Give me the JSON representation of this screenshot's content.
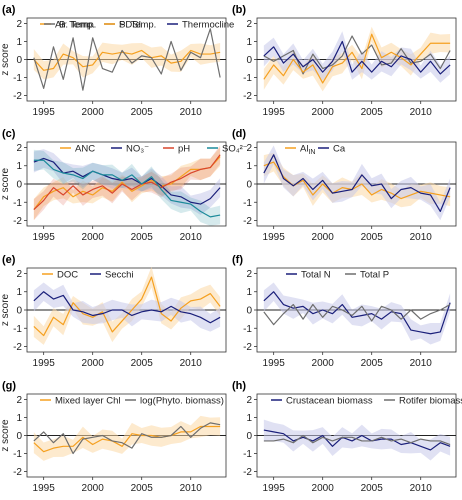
{
  "colors": {
    "orange": "#f5a020",
    "orange_band": "#fbd8a6",
    "navy": "#1a1f7a",
    "navy_band": "#c6c9ea",
    "gray": "#6e6e6e",
    "red": "#d9452c",
    "green": "#2e8b57",
    "teal": "#1b8a9a",
    "zero_line": "#222222",
    "axis": "#333333"
  },
  "chart_data": [
    {
      "type": "line",
      "panel_label": "(a)",
      "x": [
        1994,
        1995,
        1996,
        1997,
        1998,
        1999,
        2000,
        2001,
        2002,
        2003,
        2004,
        2005,
        2006,
        2007,
        2008,
        2009,
        2010,
        2011,
        2012,
        2013
      ],
      "xlim": [
        1993.3,
        2013.6
      ],
      "xticks": [
        1995,
        2000,
        2005,
        2010
      ],
      "ylim": [
        -2.3,
        2.3
      ],
      "yticks": [
        -2,
        -1,
        0,
        1,
        2
      ],
      "ylabel": "z score",
      "series": [
        {
          "name": "Air Temp.",
          "color": "orange",
          "band": true,
          "values": [
            0.0,
            -0.6,
            -0.5,
            0.3,
            0.1,
            -0.4,
            -0.3,
            0.4,
            0.3,
            0.4,
            0.3,
            0.5,
            0.1,
            0.2,
            -0.2,
            -0.1,
            0.5,
            0.3,
            0.3,
            0.4
          ]
        },
        {
          "name": "PDSI",
          "color": "gray",
          "band": false,
          "values": [
            0.1,
            -1.6,
            0.7,
            -1.1,
            1.2,
            -1.7,
            1.2,
            -0.5,
            -0.7,
            0.5,
            -0.2,
            0.2,
            0.1,
            -0.8,
            1.0,
            -0.6,
            0.4,
            0.1,
            1.7,
            -1.0
          ]
        }
      ]
    },
    {
      "type": "line",
      "panel_label": "(b)",
      "x": [
        1994,
        1995,
        1996,
        1997,
        1998,
        1999,
        2000,
        2001,
        2002,
        2003,
        2004,
        2005,
        2006,
        2007,
        2008,
        2009,
        2010,
        2011,
        2012,
        2013
      ],
      "xlim": [
        1993.3,
        2013.6
      ],
      "xticks": [
        1995,
        2000,
        2005,
        2010
      ],
      "ylim": [
        -2.3,
        2.3
      ],
      "yticks": [
        -2,
        -1,
        0,
        1,
        2
      ],
      "ylabel": "",
      "series": [
        {
          "name": "B. Temp.",
          "color": "gray",
          "band": false,
          "values": [
            0.2,
            -0.1,
            0.2,
            0.5,
            -0.8,
            0.3,
            -0.5,
            -0.3,
            0.2,
            1.3,
            0.3,
            0.8,
            -0.3,
            -0.2,
            0.6,
            -0.2,
            -0.1,
            0.3,
            -0.5,
            0.5
          ]
        },
        {
          "name": "S. Temp.",
          "color": "orange",
          "band": true,
          "values": [
            -1.1,
            -0.3,
            -0.9,
            0.0,
            -0.7,
            -0.3,
            -1.3,
            -0.4,
            -0.2,
            0.4,
            -0.5,
            1.4,
            0.1,
            0.4,
            0.1,
            -0.3,
            0.3,
            0.9,
            0.9,
            0.9
          ]
        },
        {
          "name": "Thermocline",
          "color": "navy",
          "band": true,
          "values": [
            0.2,
            0.7,
            -0.2,
            0.3,
            -0.4,
            0.0,
            -0.7,
            -0.1,
            1.0,
            -0.7,
            -0.1,
            -0.7,
            -0.1,
            -0.4,
            0.2,
            0.0,
            -0.7,
            -0.1,
            -0.8,
            -0.3
          ]
        }
      ]
    },
    {
      "type": "line",
      "panel_label": "(c)",
      "x": [
        1994,
        1995,
        1996,
        1997,
        1998,
        1999,
        2000,
        2001,
        2002,
        2003,
        2004,
        2005,
        2006,
        2007,
        2008,
        2009,
        2010,
        2011,
        2012,
        2013
      ],
      "xlim": [
        1993.3,
        2013.6
      ],
      "xticks": [
        1995,
        2000,
        2005,
        2010
      ],
      "ylim": [
        -2.3,
        2.3
      ],
      "yticks": [
        -2,
        -1,
        0,
        1,
        2
      ],
      "ylabel": "z score",
      "series": [
        {
          "name": "ANC",
          "color": "orange",
          "band": true,
          "values": [
            -1.4,
            -0.7,
            -0.4,
            -0.2,
            -0.7,
            -0.4,
            -0.6,
            -0.2,
            -0.4,
            0.1,
            -0.4,
            -0.1,
            0.2,
            -0.1,
            0.0,
            0.4,
            0.8,
            0.8,
            0.9,
            1.5
          ]
        },
        {
          "name": "NO₃⁻",
          "color": "navy",
          "band": true,
          "values": [
            1.2,
            1.4,
            1.2,
            0.6,
            0.7,
            0.4,
            0.7,
            0.5,
            0.3,
            0.2,
            0.3,
            0.0,
            0.3,
            -0.1,
            -0.6,
            -0.7,
            -1.0,
            -1.1,
            -0.8,
            -0.2
          ]
        },
        {
          "name": "pH",
          "color": "red",
          "band": true,
          "values": [
            -1.4,
            -0.9,
            -0.2,
            -0.6,
            -0.1,
            -0.6,
            -0.3,
            -0.1,
            -0.5,
            0.0,
            -0.3,
            0.0,
            0.1,
            -0.2,
            0.1,
            0.3,
            0.6,
            0.8,
            0.9,
            1.6
          ]
        },
        {
          "name": "SO₄²⁻",
          "color": "teal",
          "band": true,
          "values": [
            1.3,
            1.3,
            0.8,
            0.6,
            0.5,
            0.3,
            0.7,
            0.5,
            0.5,
            0.2,
            0.5,
            0.0,
            0.4,
            -0.3,
            -0.9,
            -1.0,
            -1.1,
            -1.5,
            -1.8,
            -1.7
          ]
        }
      ]
    },
    {
      "type": "line",
      "panel_label": "(d)",
      "x": [
        1994,
        1995,
        1996,
        1997,
        1998,
        1999,
        2000,
        2001,
        2002,
        2003,
        2004,
        2005,
        2006,
        2007,
        2008,
        2009,
        2010,
        2011,
        2012,
        2013
      ],
      "xlim": [
        1993.3,
        2013.6
      ],
      "xticks": [
        1995,
        2000,
        2005,
        2010
      ],
      "ylim": [
        -2.3,
        2.3
      ],
      "yticks": [
        -2,
        -1,
        0,
        1,
        2
      ],
      "ylabel": "",
      "series": [
        {
          "name": "Al_IN",
          "color": "orange",
          "band": true,
          "values": [
            1.0,
            1.2,
            0.4,
            -0.1,
            0.2,
            -0.6,
            0.0,
            -0.5,
            -0.2,
            -0.3,
            0.0,
            -0.6,
            -0.3,
            -0.5,
            -0.8,
            -0.6,
            -0.4,
            -0.5,
            -0.6,
            -0.7
          ]
        },
        {
          "name": "Ca",
          "color": "navy",
          "band": true,
          "values": [
            0.6,
            1.6,
            0.3,
            -0.1,
            0.3,
            -0.3,
            0.2,
            -0.5,
            -0.4,
            -0.3,
            0.5,
            -0.1,
            0.0,
            -0.8,
            -0.3,
            -0.2,
            -0.5,
            -0.6,
            -1.5,
            -0.2
          ]
        }
      ]
    },
    {
      "type": "line",
      "panel_label": "(e)",
      "x": [
        1994,
        1995,
        1996,
        1997,
        1998,
        1999,
        2000,
        2001,
        2002,
        2003,
        2004,
        2005,
        2006,
        2007,
        2008,
        2009,
        2010,
        2011,
        2012,
        2013
      ],
      "xlim": [
        1993.3,
        2013.6
      ],
      "xticks": [
        1995,
        2000,
        2005,
        2010
      ],
      "ylim": [
        -2.3,
        2.3
      ],
      "yticks": [
        -2,
        -1,
        0,
        1,
        2
      ],
      "ylabel": "z score",
      "series": [
        {
          "name": "DOC",
          "color": "orange",
          "band": true,
          "values": [
            -0.9,
            -1.4,
            -0.4,
            -0.8,
            0.4,
            -0.2,
            -0.4,
            -0.1,
            -1.2,
            -0.6,
            0.0,
            0.6,
            1.8,
            -0.2,
            -0.6,
            0.1,
            0.5,
            0.6,
            0.9,
            0.2
          ]
        },
        {
          "name": "Secchi",
          "color": "navy",
          "band": true,
          "values": [
            0.5,
            1.0,
            0.6,
            0.8,
            0.0,
            -0.1,
            -0.3,
            -0.2,
            0.0,
            0.0,
            -0.3,
            -0.1,
            0.0,
            -0.1,
            0.2,
            -0.1,
            -0.2,
            -0.4,
            -0.7,
            -0.4
          ]
        }
      ]
    },
    {
      "type": "line",
      "panel_label": "(f)",
      "x": [
        1994,
        1995,
        1996,
        1997,
        1998,
        1999,
        2000,
        2001,
        2002,
        2003,
        2004,
        2005,
        2006,
        2007,
        2008,
        2009,
        2010,
        2011,
        2012,
        2013
      ],
      "xlim": [
        1993.3,
        2013.6
      ],
      "xticks": [
        1995,
        2000,
        2005,
        2010
      ],
      "ylim": [
        -2.3,
        2.3
      ],
      "yticks": [
        -2,
        -1,
        0,
        1,
        2
      ],
      "ylabel": "",
      "series": [
        {
          "name": "Total N",
          "color": "navy",
          "band": true,
          "values": [
            0.5,
            1.0,
            0.3,
            0.1,
            0.2,
            -0.2,
            0.0,
            -0.2,
            0.3,
            -0.4,
            -0.3,
            -0.2,
            -0.5,
            -0.1,
            -0.2,
            -1.1,
            -1.2,
            -1.3,
            -1.2,
            0.4
          ]
        },
        {
          "name": "Total P",
          "color": "gray",
          "band": false,
          "values": [
            -0.1,
            -0.8,
            -0.2,
            0.3,
            -0.5,
            0.3,
            -0.4,
            0.2,
            0.0,
            -0.3,
            0.2,
            -0.6,
            0.2,
            0.0,
            -0.5,
            0.0,
            -0.5,
            -0.2,
            0.0,
            0.3
          ]
        }
      ]
    },
    {
      "type": "line",
      "panel_label": "(g)",
      "x": [
        1994,
        1995,
        1996,
        1997,
        1998,
        1999,
        2000,
        2001,
        2002,
        2003,
        2004,
        2005,
        2006,
        2007,
        2008,
        2009,
        2010,
        2011,
        2012,
        2013
      ],
      "xlim": [
        1993.3,
        2013.6
      ],
      "xticks": [
        1995,
        2000,
        2005,
        2010
      ],
      "ylim": [
        -2.3,
        2.3
      ],
      "yticks": [
        -2,
        -1,
        0,
        1,
        2
      ],
      "ylabel": "z score",
      "series": [
        {
          "name": "Mixed layer Chl",
          "color": "orange",
          "band": true,
          "values": [
            -0.4,
            -0.9,
            -0.7,
            -0.6,
            -0.6,
            -0.1,
            -0.5,
            -0.2,
            -0.3,
            -0.6,
            0.1,
            0.0,
            0.0,
            -0.1,
            0.0,
            0.2,
            0.2,
            0.5,
            0.5,
            0.5
          ]
        },
        {
          "name": "log(Phyto. biomass)",
          "color": "gray",
          "band": false,
          "values": [
            -0.3,
            0.2,
            -0.4,
            0.1,
            -1.0,
            -0.2,
            -0.1,
            0.0,
            -0.3,
            -0.4,
            -0.7,
            0.1,
            -0.1,
            -0.1,
            0.0,
            0.5,
            -0.1,
            0.4,
            0.7,
            0.6
          ]
        }
      ]
    },
    {
      "type": "line",
      "panel_label": "(h)",
      "x": [
        1994,
        1995,
        1996,
        1997,
        1998,
        1999,
        2000,
        2001,
        2002,
        2003,
        2004,
        2005,
        2006,
        2007,
        2008,
        2009,
        2010,
        2011,
        2012,
        2013
      ],
      "xlim": [
        1993.3,
        2013.6
      ],
      "xticks": [
        1995,
        2000,
        2005,
        2010
      ],
      "ylim": [
        -2.3,
        2.3
      ],
      "yticks": [
        -2,
        -1,
        0,
        1,
        2
      ],
      "ylabel": "",
      "series": [
        {
          "name": "Crustacean biomass",
          "color": "navy",
          "band": true,
          "values": [
            0.3,
            0.2,
            0.1,
            -0.3,
            -0.1,
            -0.3,
            0.0,
            -0.6,
            -0.1,
            -0.3,
            0.0,
            -0.3,
            -0.2,
            -0.2,
            -0.5,
            -0.4,
            -0.6,
            -0.8,
            -0.4,
            -0.6
          ]
        },
        {
          "name": "Rotifer biomass",
          "color": "gray",
          "band": false,
          "values": [
            -0.3,
            -0.3,
            -0.2,
            -0.4,
            0.0,
            -0.4,
            -0.1,
            -0.3,
            -0.1,
            -0.1,
            -0.3,
            -0.3,
            -0.1,
            -0.3,
            -0.2,
            -0.4,
            -0.2,
            -0.3,
            -0.3,
            -0.5
          ]
        }
      ]
    }
  ]
}
